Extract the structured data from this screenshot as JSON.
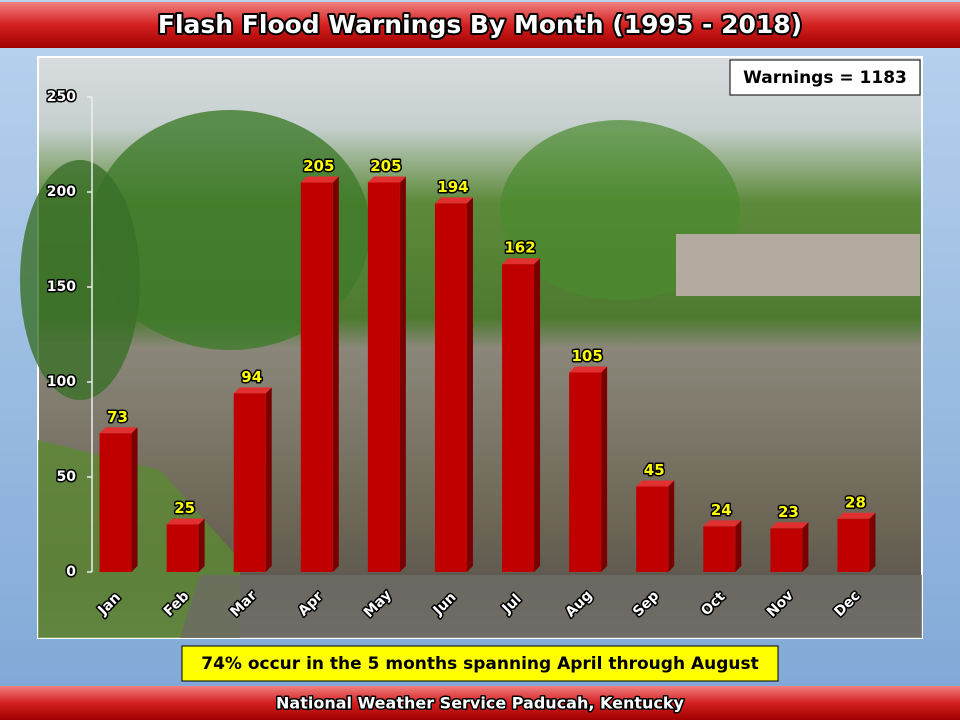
{
  "chart_data": {
    "type": "bar",
    "title": "Flash Flood Warnings By Month (1995 - 2018)",
    "categories": [
      "Jan",
      "Feb",
      "Mar",
      "Apr",
      "May",
      "Jun",
      "Jul",
      "Aug",
      "Sep",
      "Oct",
      "Nov",
      "Dec"
    ],
    "values": [
      73,
      25,
      94,
      205,
      205,
      194,
      162,
      105,
      45,
      24,
      23,
      28
    ],
    "color": "#c00000",
    "ylim": [
      0,
      250
    ],
    "yticks": [
      0,
      50,
      100,
      150,
      200,
      250
    ],
    "legend_text": "Warnings = 1183",
    "annotation": "74% occur in the 5 months spanning April through August",
    "source": "National Weather Service Paducah, Kentucky"
  }
}
